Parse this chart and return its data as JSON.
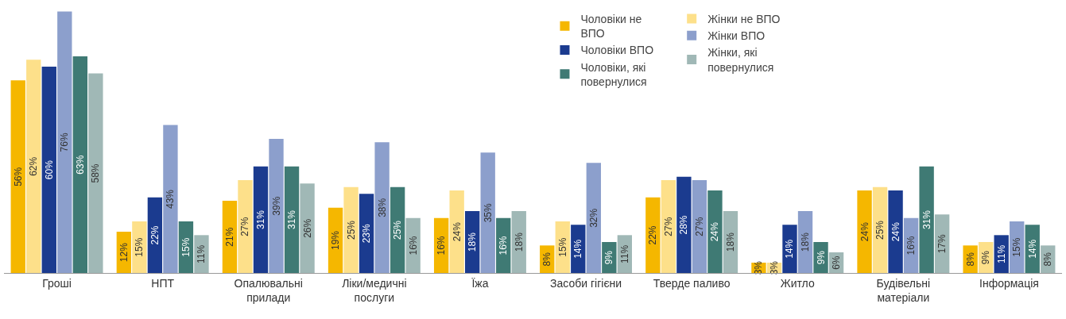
{
  "chart_data": {
    "type": "bar",
    "categories": [
      "Гроші",
      "НПТ",
      "Опалювальні прилади",
      "Ліки/медичні послуги",
      "Їжа",
      "Засоби гігієни",
      "Тверде паливо",
      "Житло",
      "Будівельні матеріали",
      "Інформація"
    ],
    "series": [
      {
        "name": "Чоловіки не ВПО",
        "color": "#f5b700",
        "values": [
          56,
          12,
          21,
          19,
          16,
          8,
          22,
          3,
          24,
          8
        ],
        "value_labels": [
          "56%",
          "12%",
          "21%",
          "19%",
          "16%",
          "8%",
          "22%",
          "3%",
          "24%",
          "8%"
        ]
      },
      {
        "name": "Жінки не ВПО",
        "color": "#fde08a",
        "values": [
          62,
          15,
          27,
          25,
          24,
          15,
          27,
          3,
          25,
          9
        ],
        "value_labels": [
          "62%",
          "15%",
          "27%",
          "25%",
          "24%",
          "15%",
          "27%",
          "3%",
          "25%",
          "9%"
        ]
      },
      {
        "name": "Чоловіки ВПО",
        "color": "#1b3b8f",
        "values": [
          60,
          22,
          31,
          23,
          18,
          14,
          28,
          14,
          24,
          11
        ],
        "value_labels": [
          "60%",
          "22%",
          "31%",
          "23%",
          "18%",
          "14%",
          "28%",
          "14%",
          "24%",
          "11%"
        ]
      },
      {
        "name": "Жінки ВПО",
        "color": "#8c9fcc",
        "values": [
          76,
          43,
          39,
          38,
          35,
          32,
          27,
          18,
          16,
          15
        ],
        "value_labels": [
          "76%",
          "43%",
          "39%",
          "38%",
          "35%",
          "32%",
          "27%",
          "18%",
          "16%",
          "15%"
        ]
      },
      {
        "name": "Чоловіки, які повернулися",
        "color": "#3f7a74",
        "values": [
          63,
          15,
          31,
          25,
          16,
          9,
          24,
          9,
          31,
          14
        ],
        "value_labels": [
          "63%",
          "15%",
          "31%",
          "25%",
          "16%",
          "9%",
          "24%",
          "9%",
          "31%",
          "14%"
        ]
      },
      {
        "name": "Жінки, які повернулися",
        "color": "#a0b8b6",
        "values": [
          58,
          11,
          26,
          16,
          18,
          11,
          18,
          6,
          17,
          8
        ],
        "value_labels": [
          "58%",
          "11%",
          "26%",
          "16%",
          "18%",
          "11%",
          "18%",
          "6%",
          "17%",
          "8%"
        ]
      }
    ],
    "legend": "top right"
  }
}
